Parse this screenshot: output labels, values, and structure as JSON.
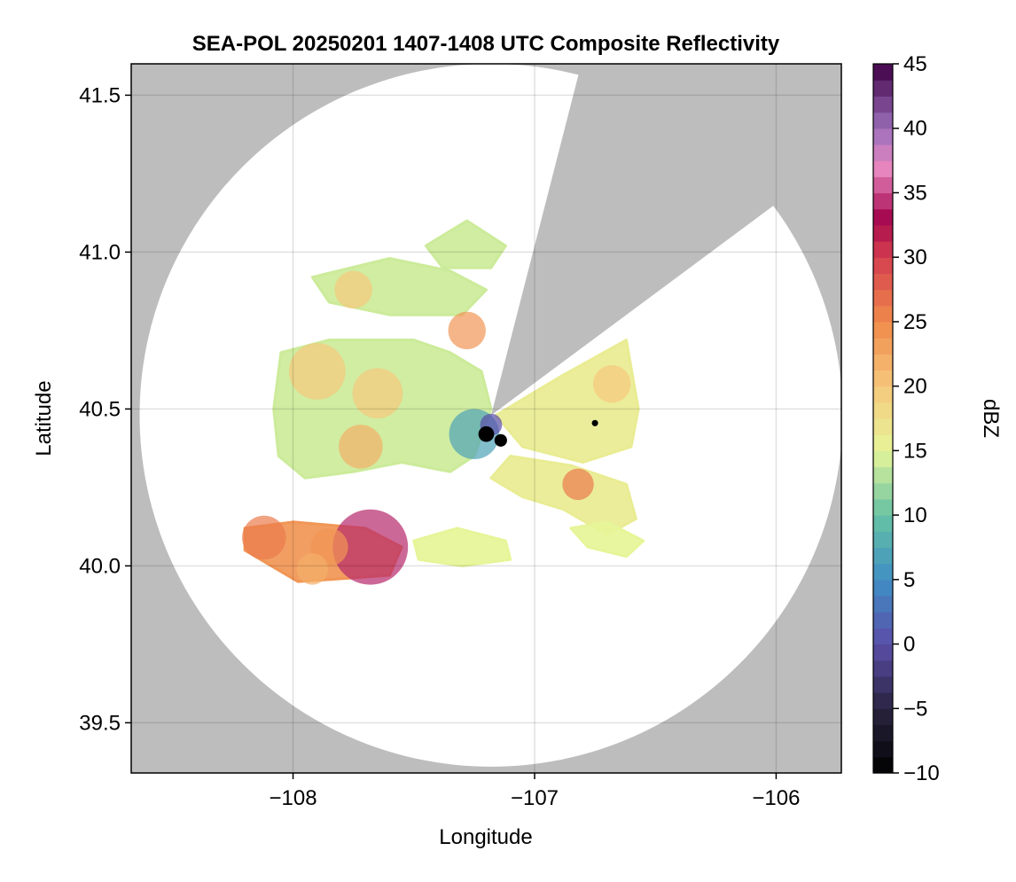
{
  "chart_data": {
    "type": "heatmap",
    "title": "SEA-POL 20250201 1407-1408 UTC Composite Reflectivity",
    "xlabel": "Longitude",
    "ylabel": "Latitude",
    "xlim": [
      -108.67,
      -105.73
    ],
    "ylim": [
      39.34,
      41.6
    ],
    "xticks": [
      {
        "value": -108,
        "label": "−108"
      },
      {
        "value": -107,
        "label": "−107"
      },
      {
        "value": -106,
        "label": "−106"
      }
    ],
    "yticks": [
      {
        "value": 39.5,
        "label": "39.5"
      },
      {
        "value": 40.0,
        "label": "40.0"
      },
      {
        "value": 40.5,
        "label": "40.5"
      },
      {
        "value": 41.0,
        "label": "41.0"
      },
      {
        "value": 41.5,
        "label": "41.5"
      }
    ],
    "grid": true,
    "background_color": "#bdbdbd",
    "no_echo_color": "#ffffff",
    "radar": {
      "center": {
        "lon": -107.18,
        "lat": 40.48
      },
      "max_range_lat_deg": 1.12,
      "blocked_sectors": [
        {
          "from_lon": -106.83,
          "from_lat": 41.53
        },
        {
          "from_lon": -106.06,
          "from_lat": 41.12
        }
      ]
    },
    "echo_regions": [
      {
        "name": "main-stratiform",
        "polygon": [
          [
            -108.05,
            40.68
          ],
          [
            -107.85,
            40.72
          ],
          [
            -107.5,
            40.72
          ],
          [
            -107.35,
            40.68
          ],
          [
            -107.22,
            40.62
          ],
          [
            -107.18,
            40.5
          ],
          [
            -107.25,
            40.35
          ],
          [
            -107.35,
            40.3
          ],
          [
            -107.55,
            40.33
          ],
          [
            -107.75,
            40.3
          ],
          [
            -107.95,
            40.28
          ],
          [
            -108.06,
            40.35
          ],
          [
            -108.08,
            40.5
          ]
        ],
        "dbz": 14
      },
      {
        "name": "northern-band",
        "polygon": [
          [
            -107.92,
            40.92
          ],
          [
            -107.6,
            40.98
          ],
          [
            -107.35,
            40.94
          ],
          [
            -107.2,
            40.88
          ],
          [
            -107.3,
            40.8
          ],
          [
            -107.6,
            40.8
          ],
          [
            -107.85,
            40.84
          ]
        ],
        "dbz": 14
      },
      {
        "name": "northeast-cells",
        "polygon": [
          [
            -107.45,
            41.02
          ],
          [
            -107.28,
            41.1
          ],
          [
            -107.12,
            41.02
          ],
          [
            -107.18,
            40.95
          ],
          [
            -107.38,
            40.95
          ]
        ],
        "dbz": 14
      },
      {
        "name": "east-sector",
        "polygon": [
          [
            -107.16,
            40.48
          ],
          [
            -106.9,
            40.6
          ],
          [
            -106.62,
            40.72
          ],
          [
            -106.57,
            40.5
          ],
          [
            -106.6,
            40.38
          ],
          [
            -106.8,
            40.33
          ],
          [
            -107.05,
            40.38
          ]
        ],
        "dbz": 16
      },
      {
        "name": "southeast-fingers",
        "polygon": [
          [
            -107.1,
            40.35
          ],
          [
            -106.85,
            40.32
          ],
          [
            -106.62,
            40.26
          ],
          [
            -106.58,
            40.15
          ],
          [
            -106.7,
            40.1
          ],
          [
            -106.88,
            40.18
          ],
          [
            -107.05,
            40.22
          ],
          [
            -107.18,
            40.28
          ]
        ],
        "dbz": 16
      },
      {
        "name": "southeast-fragments",
        "polygon": [
          [
            -106.85,
            40.12
          ],
          [
            -106.7,
            40.14
          ],
          [
            -106.55,
            40.08
          ],
          [
            -106.62,
            40.03
          ],
          [
            -106.78,
            40.06
          ]
        ],
        "dbz": 15
      },
      {
        "name": "southwest-band",
        "polygon": [
          [
            -108.2,
            40.12
          ],
          [
            -108.0,
            40.14
          ],
          [
            -107.7,
            40.12
          ],
          [
            -107.55,
            40.06
          ],
          [
            -107.6,
            39.97
          ],
          [
            -107.78,
            39.96
          ],
          [
            -107.98,
            39.95
          ],
          [
            -108.2,
            40.05
          ]
        ],
        "dbz": 24
      },
      {
        "name": "south-fragments",
        "polygon": [
          [
            -107.5,
            40.08
          ],
          [
            -107.32,
            40.12
          ],
          [
            -107.12,
            40.08
          ],
          [
            -107.1,
            40.02
          ],
          [
            -107.3,
            40.0
          ],
          [
            -107.48,
            40.02
          ]
        ],
        "dbz": 15
      }
    ],
    "echo_cores": [
      {
        "lon": -107.68,
        "lat": 40.06,
        "r": 0.12,
        "dbz": 34
      },
      {
        "lon": -108.12,
        "lat": 40.09,
        "r": 0.07,
        "dbz": 26
      },
      {
        "lon": -107.85,
        "lat": 40.06,
        "r": 0.06,
        "dbz": 24
      },
      {
        "lon": -107.92,
        "lat": 39.99,
        "r": 0.05,
        "dbz": 22
      },
      {
        "lon": -107.9,
        "lat": 40.62,
        "r": 0.09,
        "dbz": 20
      },
      {
        "lon": -107.65,
        "lat": 40.55,
        "r": 0.08,
        "dbz": 20
      },
      {
        "lon": -107.72,
        "lat": 40.38,
        "r": 0.07,
        "dbz": 22
      },
      {
        "lon": -107.28,
        "lat": 40.75,
        "r": 0.06,
        "dbz": 24
      },
      {
        "lon": -107.75,
        "lat": 40.88,
        "r": 0.06,
        "dbz": 20
      },
      {
        "lon": -106.82,
        "lat": 40.26,
        "r": 0.05,
        "dbz": 26
      },
      {
        "lon": -106.68,
        "lat": 40.58,
        "r": 0.06,
        "dbz": 20
      },
      {
        "lon": -107.25,
        "lat": 40.42,
        "r": 0.08,
        "dbz": 7
      },
      {
        "lon": -107.18,
        "lat": 40.45,
        "r": 0.035,
        "dbz": 0
      },
      {
        "lon": -107.2,
        "lat": 40.42,
        "r": 0.025,
        "dbz": -10
      },
      {
        "lon": -107.14,
        "lat": 40.4,
        "r": 0.02,
        "dbz": -10
      },
      {
        "lon": -106.75,
        "lat": 40.455,
        "r": 0.01,
        "dbz": -10
      }
    ],
    "colorbar": {
      "label": "dBZ",
      "min": -10,
      "max": 45,
      "step": 1.25,
      "ticks": [
        {
          "value": -10,
          "label": "−10"
        },
        {
          "value": -5,
          "label": "−5"
        },
        {
          "value": 0,
          "label": "0"
        },
        {
          "value": 5,
          "label": "5"
        },
        {
          "value": 10,
          "label": "10"
        },
        {
          "value": 15,
          "label": "15"
        },
        {
          "value": 20,
          "label": "20"
        },
        {
          "value": 25,
          "label": "25"
        },
        {
          "value": 30,
          "label": "30"
        },
        {
          "value": 35,
          "label": "35"
        },
        {
          "value": 40,
          "label": "40"
        },
        {
          "value": 45,
          "label": "45"
        }
      ],
      "colormap": [
        [
          -10,
          "#000000"
        ],
        [
          -5,
          "#2a2440"
        ],
        [
          0,
          "#5a4ea8"
        ],
        [
          5,
          "#3f8fc4"
        ],
        [
          10,
          "#66c2a4"
        ],
        [
          15,
          "#e6f598"
        ],
        [
          20,
          "#f6c87c"
        ],
        [
          25,
          "#f08a4b"
        ],
        [
          30,
          "#d53e4f"
        ],
        [
          33,
          "#a5084e"
        ],
        [
          37,
          "#e889c2"
        ],
        [
          40,
          "#9b6fba"
        ],
        [
          45,
          "#3f0045"
        ]
      ]
    }
  }
}
